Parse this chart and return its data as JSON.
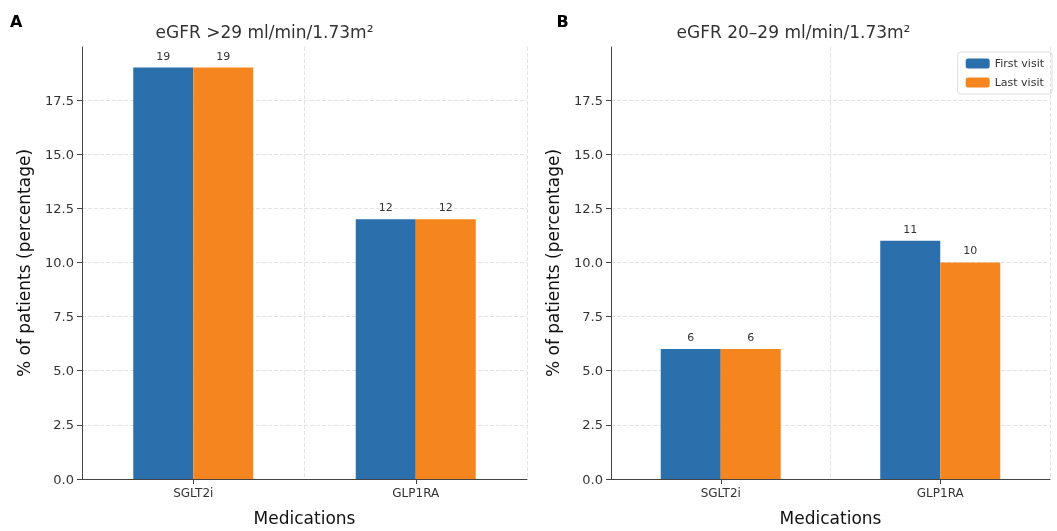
{
  "chart_data": [
    {
      "type": "bar",
      "title": "eGFR >29 ml/min/1.73m²",
      "xlabel": "Medications",
      "ylabel": "% of patients (percentage)",
      "annotations": [
        "A"
      ],
      "categories": [
        "SGLT2i",
        "GLP1RA"
      ],
      "series": [
        {
          "color": "#2b6fad",
          "values": [
            19,
            12
          ]
        },
        {
          "color": "#f5861f",
          "values": [
            19,
            12
          ]
        }
      ],
      "ylim": [
        0,
        19.95
      ],
      "yticks": [
        {
          "value": 0,
          "label": "0.0"
        },
        {
          "value": 2.5,
          "label": "2.5"
        },
        {
          "value": 5,
          "label": "5.0"
        },
        {
          "value": 7.5,
          "label": "7.5"
        },
        {
          "value": 10,
          "label": "10.0"
        },
        {
          "value": 12.5,
          "label": "12.5"
        },
        {
          "value": 15,
          "label": "15.0"
        },
        {
          "value": 17.5,
          "label": "17.5"
        }
      ],
      "grid": true,
      "data_labels": true,
      "legend": false
    },
    {
      "type": "bar",
      "title": "eGFR 20–29 ml/min/1.73m²",
      "xlabel": "Medications",
      "ylabel": "% of patients (percentage)",
      "annotations": [
        "B"
      ],
      "categories": [
        "SGLT2i",
        "GLP1RA"
      ],
      "series": [
        {
          "name": "First visit",
          "color": "#2b6fad",
          "values": [
            6,
            11
          ]
        },
        {
          "name": "Last visit",
          "color": "#f5861f",
          "values": [
            6,
            10
          ]
        }
      ],
      "ylim": [
        0,
        19.95
      ],
      "yticks": [
        {
          "value": 0,
          "label": "0.0"
        },
        {
          "value": 2.5,
          "label": "2.5"
        },
        {
          "value": 5,
          "label": "5.0"
        },
        {
          "value": 7.5,
          "label": "7.5"
        },
        {
          "value": 10,
          "label": "10.0"
        },
        {
          "value": 12.5,
          "label": "12.5"
        },
        {
          "value": 15,
          "label": "15.0"
        },
        {
          "value": 17.5,
          "label": "17.5"
        }
      ],
      "grid": true,
      "data_labels": true,
      "legend": "top right"
    }
  ]
}
